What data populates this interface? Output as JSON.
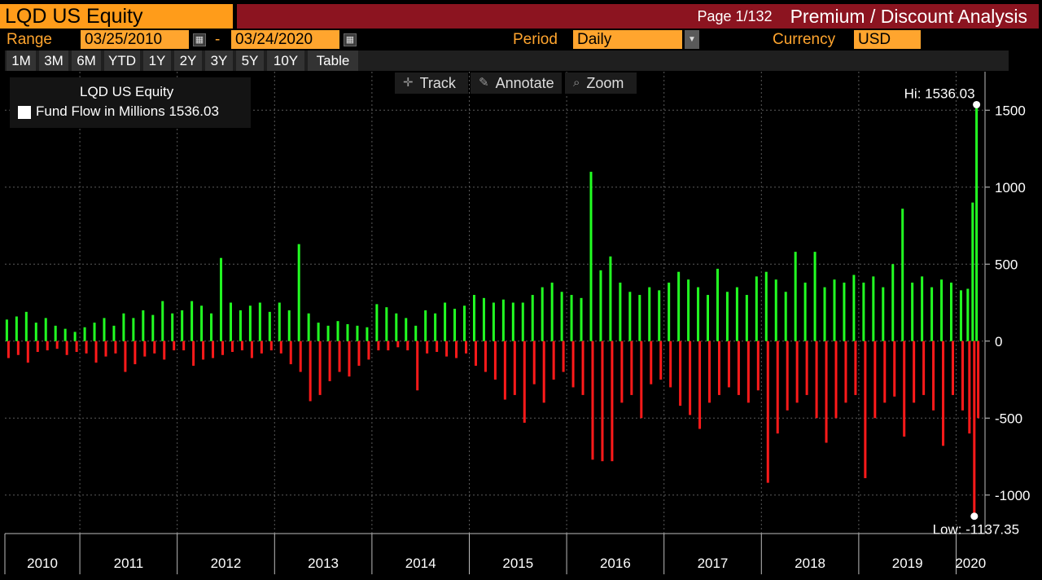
{
  "header": {
    "ticker": "LQD US Equity",
    "page": "Page 1/132",
    "title": "Premium / Discount Analysis"
  },
  "controls": {
    "range_label": "Range",
    "start_date": "03/25/2010",
    "separator": "-",
    "end_date": "03/24/2020",
    "period_label": "Period",
    "period_value": "Daily",
    "currency_label": "Currency",
    "currency_value": "USD",
    "period_buttons": [
      "1M",
      "3M",
      "6M",
      "YTD",
      "1Y",
      "2Y",
      "3Y",
      "5Y",
      "10Y",
      "Table"
    ]
  },
  "toolbar": {
    "track": "Track",
    "annotate": "Annotate",
    "zoom": "Zoom"
  },
  "legend": {
    "security": "LQD US Equity",
    "series": "Fund Flow in Millions 1536.03"
  },
  "colors": {
    "positive": "#22ff22",
    "negative": "#ff1a1a",
    "header_orange": "#ff9c1a",
    "title_bar": "#8c1420"
  },
  "chart_data": {
    "type": "bar",
    "series_name": "Fund Flow in Millions",
    "ylim": [
      -1250,
      1750
    ],
    "yticks": [
      -1000,
      -500,
      0,
      500,
      1000,
      1500
    ],
    "xlabels": [
      "2010",
      "2011",
      "2012",
      "2013",
      "2014",
      "2015",
      "2016",
      "2017",
      "2018",
      "2019",
      "2020"
    ],
    "x_start": 2010.23,
    "x_end": 2020.23,
    "hi_label": "Hi: 1536.03",
    "low_label": "Low: -1137.35",
    "hi_value": 1536.03,
    "low_value": -1137.35,
    "flows": [
      {
        "year": 2010.25,
        "in": 140,
        "out": -110
      },
      {
        "year": 2010.35,
        "in": 160,
        "out": -90
      },
      {
        "year": 2010.45,
        "in": 190,
        "out": -140
      },
      {
        "year": 2010.55,
        "in": 120,
        "out": -70
      },
      {
        "year": 2010.65,
        "in": 150,
        "out": -60
      },
      {
        "year": 2010.75,
        "in": 100,
        "out": -50
      },
      {
        "year": 2010.85,
        "in": 80,
        "out": -90
      },
      {
        "year": 2010.95,
        "in": 60,
        "out": -70
      },
      {
        "year": 2011.05,
        "in": 90,
        "out": -80
      },
      {
        "year": 2011.15,
        "in": 120,
        "out": -140
      },
      {
        "year": 2011.25,
        "in": 150,
        "out": -100
      },
      {
        "year": 2011.35,
        "in": 100,
        "out": -80
      },
      {
        "year": 2011.45,
        "in": 180,
        "out": -200
      },
      {
        "year": 2011.55,
        "in": 150,
        "out": -150
      },
      {
        "year": 2011.65,
        "in": 200,
        "out": -100
      },
      {
        "year": 2011.75,
        "in": 170,
        "out": -80
      },
      {
        "year": 2011.85,
        "in": 260,
        "out": -120
      },
      {
        "year": 2011.95,
        "in": 180,
        "out": -60
      },
      {
        "year": 2012.05,
        "in": 200,
        "out": -60
      },
      {
        "year": 2012.15,
        "in": 260,
        "out": -160
      },
      {
        "year": 2012.25,
        "in": 230,
        "out": -120
      },
      {
        "year": 2012.35,
        "in": 180,
        "out": -110
      },
      {
        "year": 2012.45,
        "in": 540,
        "out": -90
      },
      {
        "year": 2012.55,
        "in": 250,
        "out": -70
      },
      {
        "year": 2012.65,
        "in": 200,
        "out": -60
      },
      {
        "year": 2012.75,
        "in": 230,
        "out": -110
      },
      {
        "year": 2012.85,
        "in": 250,
        "out": -80
      },
      {
        "year": 2012.95,
        "in": 190,
        "out": -60
      },
      {
        "year": 2013.05,
        "in": 250,
        "out": -80
      },
      {
        "year": 2013.15,
        "in": 200,
        "out": -150
      },
      {
        "year": 2013.25,
        "in": 630,
        "out": -200
      },
      {
        "year": 2013.35,
        "in": 180,
        "out": -390
      },
      {
        "year": 2013.45,
        "in": 120,
        "out": -350
      },
      {
        "year": 2013.55,
        "in": 100,
        "out": -260
      },
      {
        "year": 2013.65,
        "in": 130,
        "out": -200
      },
      {
        "year": 2013.75,
        "in": 110,
        "out": -230
      },
      {
        "year": 2013.85,
        "in": 100,
        "out": -160
      },
      {
        "year": 2013.95,
        "in": 90,
        "out": -120
      },
      {
        "year": 2014.05,
        "in": 240,
        "out": -60
      },
      {
        "year": 2014.15,
        "in": 220,
        "out": -60
      },
      {
        "year": 2014.25,
        "in": 180,
        "out": -40
      },
      {
        "year": 2014.35,
        "in": 150,
        "out": -60
      },
      {
        "year": 2014.45,
        "in": 100,
        "out": -320
      },
      {
        "year": 2014.55,
        "in": 200,
        "out": -80
      },
      {
        "year": 2014.65,
        "in": 180,
        "out": -70
      },
      {
        "year": 2014.75,
        "in": 250,
        "out": -100
      },
      {
        "year": 2014.85,
        "in": 210,
        "out": -110
      },
      {
        "year": 2014.95,
        "in": 230,
        "out": -80
      },
      {
        "year": 2015.05,
        "in": 300,
        "out": -160
      },
      {
        "year": 2015.15,
        "in": 280,
        "out": -200
      },
      {
        "year": 2015.25,
        "in": 250,
        "out": -250
      },
      {
        "year": 2015.35,
        "in": 270,
        "out": -380
      },
      {
        "year": 2015.45,
        "in": 250,
        "out": -350
      },
      {
        "year": 2015.55,
        "in": 250,
        "out": -530
      },
      {
        "year": 2015.65,
        "in": 300,
        "out": -280
      },
      {
        "year": 2015.75,
        "in": 350,
        "out": -400
      },
      {
        "year": 2015.85,
        "in": 380,
        "out": -250
      },
      {
        "year": 2015.95,
        "in": 320,
        "out": -200
      },
      {
        "year": 2016.05,
        "in": 300,
        "out": -300
      },
      {
        "year": 2016.15,
        "in": 280,
        "out": -350
      },
      {
        "year": 2016.25,
        "in": 1100,
        "out": -770
      },
      {
        "year": 2016.35,
        "in": 460,
        "out": -780
      },
      {
        "year": 2016.45,
        "in": 550,
        "out": -780
      },
      {
        "year": 2016.55,
        "in": 380,
        "out": -400
      },
      {
        "year": 2016.65,
        "in": 320,
        "out": -350
      },
      {
        "year": 2016.75,
        "in": 300,
        "out": -500
      },
      {
        "year": 2016.85,
        "in": 350,
        "out": -280
      },
      {
        "year": 2016.95,
        "in": 330,
        "out": -250
      },
      {
        "year": 2017.05,
        "in": 380,
        "out": -300
      },
      {
        "year": 2017.15,
        "in": 450,
        "out": -420
      },
      {
        "year": 2017.25,
        "in": 400,
        "out": -480
      },
      {
        "year": 2017.35,
        "in": 350,
        "out": -570
      },
      {
        "year": 2017.45,
        "in": 300,
        "out": -400
      },
      {
        "year": 2017.55,
        "in": 470,
        "out": -350
      },
      {
        "year": 2017.65,
        "in": 320,
        "out": -300
      },
      {
        "year": 2017.75,
        "in": 350,
        "out": -350
      },
      {
        "year": 2017.85,
        "in": 300,
        "out": -400
      },
      {
        "year": 2017.95,
        "in": 420,
        "out": -320
      },
      {
        "year": 2018.05,
        "in": 450,
        "out": -920
      },
      {
        "year": 2018.15,
        "in": 400,
        "out": -600
      },
      {
        "year": 2018.25,
        "in": 320,
        "out": -450
      },
      {
        "year": 2018.35,
        "in": 580,
        "out": -400
      },
      {
        "year": 2018.45,
        "in": 380,
        "out": -350
      },
      {
        "year": 2018.55,
        "in": 580,
        "out": -500
      },
      {
        "year": 2018.65,
        "in": 350,
        "out": -660
      },
      {
        "year": 2018.75,
        "in": 400,
        "out": -500
      },
      {
        "year": 2018.85,
        "in": 380,
        "out": -400
      },
      {
        "year": 2018.95,
        "in": 430,
        "out": -350
      },
      {
        "year": 2019.05,
        "in": 380,
        "out": -890
      },
      {
        "year": 2019.15,
        "in": 420,
        "out": -500
      },
      {
        "year": 2019.25,
        "in": 350,
        "out": -400
      },
      {
        "year": 2019.35,
        "in": 500,
        "out": -360
      },
      {
        "year": 2019.45,
        "in": 860,
        "out": -620
      },
      {
        "year": 2019.55,
        "in": 380,
        "out": -400
      },
      {
        "year": 2019.65,
        "in": 420,
        "out": -350
      },
      {
        "year": 2019.75,
        "in": 350,
        "out": -450
      },
      {
        "year": 2019.85,
        "in": 400,
        "out": -680
      },
      {
        "year": 2019.95,
        "in": 380,
        "out": -350
      },
      {
        "year": 2020.05,
        "in": 330,
        "out": -450
      },
      {
        "year": 2020.12,
        "in": 340,
        "out": -600
      },
      {
        "year": 2020.17,
        "in": 900,
        "out": -1137.35
      },
      {
        "year": 2020.21,
        "in": 1536.03,
        "out": -500
      }
    ]
  }
}
